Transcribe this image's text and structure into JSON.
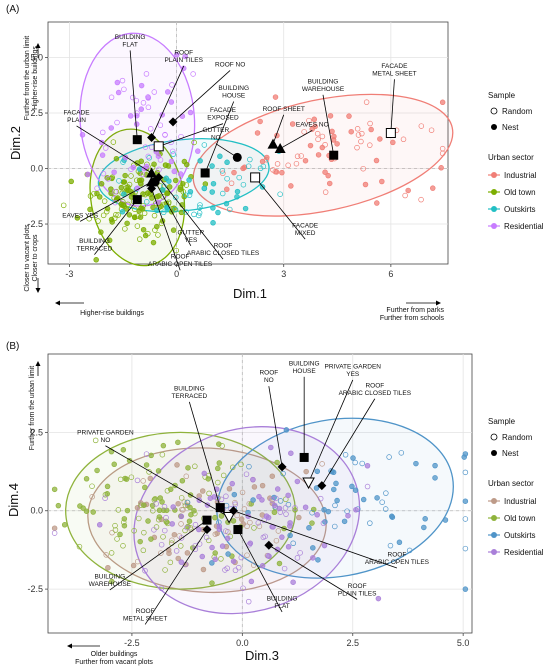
{
  "chart_data": [
    {
      "panel": "(A)",
      "type": "scatter",
      "xlabel": "Dim.1",
      "ylabel": "Dim.2",
      "xlim": [
        -3.6,
        7.6
      ],
      "ylim": [
        -4.3,
        6.6
      ],
      "xticks": [
        -3,
        0,
        3,
        6
      ],
      "yticks": [
        -2.5,
        0.0,
        2.5,
        5.0
      ],
      "tick_labels_x": [
        "-3",
        "0",
        "3",
        "6"
      ],
      "tick_labels_y": [
        "-2.5",
        "0.0",
        "2.5",
        "5.0"
      ],
      "grid": true,
      "axis_notes": {
        "top_left": "Further from the urban limit\nHigher-rise buildings",
        "bottom_left": "Closer to vacant plots\nCloser to crops",
        "bottom_left_x": "Higher-rise buildings",
        "bottom_right_x": "Further from parks\nFurther from schools"
      },
      "sectors": [
        {
          "name": "Industrial",
          "color": "#f07e76",
          "center": [
            4.3,
            0.8
          ],
          "spread": [
            1.6,
            1.1
          ],
          "n": 80,
          "seed": 11
        },
        {
          "name": "Old town",
          "color": "#7cae00",
          "center": [
            -1.0,
            -1.3
          ],
          "spread": [
            0.7,
            1.0
          ],
          "n": 160,
          "seed": 21
        },
        {
          "name": "Outskirts",
          "color": "#22bfc4",
          "center": [
            0.6,
            -0.8
          ],
          "spread": [
            1.3,
            0.9
          ],
          "n": 60,
          "seed": 31
        },
        {
          "name": "Residential",
          "color": "#c77cff",
          "center": [
            -1.0,
            2.0
          ],
          "spread": [
            0.7,
            1.9
          ],
          "n": 70,
          "seed": 41
        }
      ],
      "ellipses": [
        {
          "sector": "Industrial",
          "cx": 4.1,
          "cy": 0.6,
          "rx": 3.7,
          "ry": 2.5,
          "angle": 12
        },
        {
          "sector": "Old town",
          "cx": -1.1,
          "cy": -1.3,
          "rx": 1.3,
          "ry": 3.1,
          "angle": 10
        },
        {
          "sector": "Outskirts",
          "cx": 0.2,
          "cy": -0.3,
          "rx": 2.4,
          "ry": 1.6,
          "angle": 6
        },
        {
          "sector": "Residential",
          "cx": -1.1,
          "cy": 2.2,
          "rx": 1.6,
          "ry": 3.9,
          "angle": 4
        }
      ],
      "categories": [
        {
          "label": "BUILDING\nFLAT",
          "shape": "square",
          "x": -1.1,
          "y": 1.3,
          "lx": -1.3,
          "ly": 5.5
        },
        {
          "label": "ROOF\nPLAIN TILES",
          "shape": "diamond",
          "x": -0.7,
          "y": 1.4,
          "lx": 0.2,
          "ly": 4.8
        },
        {
          "label": "ROOF NO",
          "shape": "diamond",
          "x": -0.1,
          "y": 2.1,
          "lx": 1.5,
          "ly": 4.6
        },
        {
          "label": "FACADE\nPLAIN",
          "shape": "triangle",
          "x": -0.7,
          "y": -0.2,
          "lx": -2.8,
          "ly": 2.1
        },
        {
          "label": "FACADE\nEXPOSED",
          "shape": "square_open",
          "x": -0.5,
          "y": 1.0,
          "lx": 1.3,
          "ly": 2.2
        },
        {
          "label": "BUILDING\nHOUSE",
          "shape": "square",
          "x": 0.8,
          "y": -0.2,
          "lx": 1.6,
          "ly": 3.2
        },
        {
          "label": "GUTTER\nNO",
          "shape": "circle",
          "x": 1.7,
          "y": 0.5,
          "lx": 1.1,
          "ly": 1.3
        },
        {
          "label": "ROOF SHEET",
          "shape": "triangle",
          "x": 2.7,
          "y": 1.1,
          "lx": 3.0,
          "ly": 2.6
        },
        {
          "label": "EAVES NO",
          "shape": "triangle",
          "x": 2.9,
          "y": 0.9,
          "lx": 3.8,
          "ly": 1.9
        },
        {
          "label": "BUILDING\nWAREHOUSE",
          "shape": "square",
          "x": 4.4,
          "y": 0.6,
          "lx": 4.1,
          "ly": 3.5
        },
        {
          "label": "FACADE\nMETAL SHEET",
          "shape": "square_open",
          "x": 6.0,
          "y": 1.6,
          "lx": 6.1,
          "ly": 4.2
        },
        {
          "label": "FACADE\nMIXED",
          "shape": "square_open",
          "x": 2.2,
          "y": -0.4,
          "lx": 3.6,
          "ly": -3.0
        },
        {
          "label": "EAVES YES",
          "shape": "triangle",
          "x": -0.7,
          "y": -0.6,
          "lx": -2.7,
          "ly": -2.2
        },
        {
          "label": "BUILDING\nTERRACED",
          "shape": "square",
          "x": -1.1,
          "y": -1.4,
          "lx": -2.3,
          "ly": -3.7
        },
        {
          "label": "GUTTER\nYES",
          "shape": "circle",
          "x": -0.6,
          "y": -0.6,
          "lx": 0.4,
          "ly": -3.3
        },
        {
          "label": "ROOF\nARABIC OPEN TILES",
          "shape": "diamond",
          "x": -0.7,
          "y": -0.9,
          "lx": 0.1,
          "ly": -4.4
        },
        {
          "label": "ROOF\nARABIC CLOSED TILES",
          "shape": "diamond",
          "x": -0.5,
          "y": -0.4,
          "lx": 1.3,
          "ly": -3.9
        }
      ]
    },
    {
      "panel": "(B)",
      "type": "scatter",
      "xlabel": "Dim.3",
      "ylabel": "Dim.4",
      "xlim": [
        -4.4,
        5.2
      ],
      "ylim": [
        -3.9,
        5.0
      ],
      "xticks": [
        -2.5,
        0.0,
        2.5,
        5.0
      ],
      "yticks": [
        -2.5,
        0.0,
        2.5
      ],
      "tick_labels_x": [
        "-2.5",
        "0.0",
        "2.5",
        "5.0"
      ],
      "tick_labels_y": [
        "-2.5",
        "0.0",
        "2.5"
      ],
      "grid": true,
      "axis_notes": {
        "top_left": "Further from the urban limit",
        "bottom_left_x": "Older buildings\nFurther from vacant plots"
      },
      "sectors": [
        {
          "name": "Industrial",
          "color": "#bd9a88",
          "center": [
            -1.0,
            -0.3
          ],
          "spread": [
            1.3,
            0.9
          ],
          "n": 70,
          "seed": 51
        },
        {
          "name": "Old town",
          "color": "#8fb33c",
          "center": [
            -1.5,
            0.2
          ],
          "spread": [
            1.2,
            1.0
          ],
          "n": 130,
          "seed": 61
        },
        {
          "name": "Outskirts",
          "color": "#4f94c8",
          "center": [
            2.3,
            0.4
          ],
          "spread": [
            1.4,
            1.0
          ],
          "n": 70,
          "seed": 71
        },
        {
          "name": "Residential",
          "color": "#a97fd9",
          "center": [
            0.0,
            -0.4
          ],
          "spread": [
            1.3,
            1.1
          ],
          "n": 110,
          "seed": 81
        }
      ],
      "ellipses": [
        {
          "sector": "Industrial",
          "cx": -0.8,
          "cy": -0.3,
          "rx": 2.7,
          "ry": 2.3,
          "angle": -3
        },
        {
          "sector": "Old town",
          "cx": -1.4,
          "cy": 0.0,
          "rx": 2.6,
          "ry": 2.5,
          "angle": 0
        },
        {
          "sector": "Outskirts",
          "cx": 2.1,
          "cy": 0.4,
          "rx": 2.7,
          "ry": 2.5,
          "angle": 10
        },
        {
          "sector": "Residential",
          "cx": 0.1,
          "cy": -0.3,
          "rx": 2.6,
          "ry": 2.9,
          "angle": 18
        }
      ],
      "categories": [
        {
          "label": "BUILDING\nTERRACED",
          "shape": "square",
          "x": -0.5,
          "y": 0.1,
          "lx": -1.2,
          "ly": 3.6
        },
        {
          "label": "PRIVATE GARDEN\nNO",
          "shape": "triangle_open",
          "x": -0.3,
          "y": -0.2,
          "lx": -3.1,
          "ly": 2.2
        },
        {
          "label": "ROOF\nNO",
          "shape": "diamond",
          "x": 0.9,
          "y": 1.4,
          "lx": 0.6,
          "ly": 4.1
        },
        {
          "label": "BUILDING\nHOUSE",
          "shape": "square",
          "x": 1.4,
          "y": 1.7,
          "lx": 1.4,
          "ly": 4.4
        },
        {
          "label": "PRIVATE GARDEN\nYES",
          "shape": "triangle_open",
          "x": 1.5,
          "y": 0.9,
          "lx": 2.5,
          "ly": 4.3
        },
        {
          "label": "ROOF\nARABIC CLOSED TILES",
          "shape": "diamond",
          "x": 1.8,
          "y": 0.8,
          "lx": 3.0,
          "ly": 3.7
        },
        {
          "label": "BUILDING\nWAREHOUSE",
          "shape": "square",
          "x": -0.8,
          "y": -0.3,
          "lx": -3.0,
          "ly": -2.4
        },
        {
          "label": "ROOF\nMETAL SHEET",
          "shape": "diamond",
          "x": -0.8,
          "y": -0.6,
          "lx": -2.2,
          "ly": -3.5
        },
        {
          "label": "ROOF\nARABIC OPEN TILES",
          "shape": "diamond",
          "x": -0.2,
          "y": 0.0,
          "lx": 3.5,
          "ly": -1.7
        },
        {
          "label": "ROOF\nPLAIN TILES",
          "shape": "diamond",
          "x": 0.6,
          "y": -1.1,
          "lx": 2.6,
          "ly": -2.7
        },
        {
          "label": "BUILDING\nFLAT",
          "shape": "square",
          "x": -0.1,
          "y": -0.6,
          "lx": 0.9,
          "ly": -3.1
        }
      ]
    }
  ],
  "legend": {
    "sample_title": "Sample",
    "sample_items": [
      "Random",
      "Nest"
    ],
    "sector_title": "Urban sector",
    "sector_items": [
      "Industrial",
      "Old town",
      "Outskirts",
      "Residential"
    ]
  }
}
